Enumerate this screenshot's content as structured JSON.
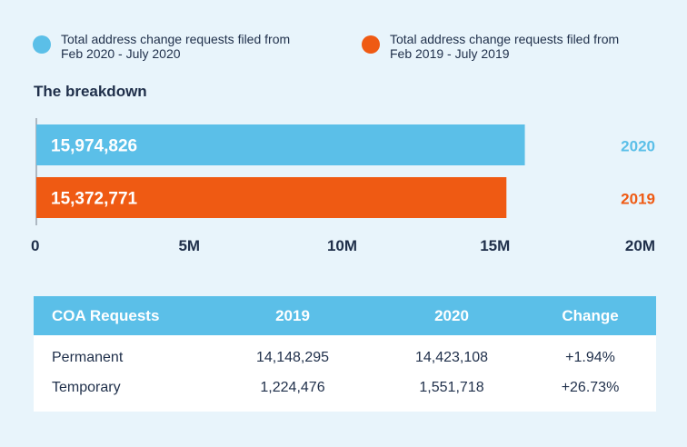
{
  "legend": [
    {
      "text": "Total address change requests filed from Feb 2020 - July 2020",
      "color": "#5bbfe8"
    },
    {
      "text": "Total address change requests filed from Feb 2019 - July 2019",
      "color": "#ef5a13"
    }
  ],
  "section_title": "The breakdown",
  "chart_data": {
    "type": "bar",
    "orientation": "horizontal",
    "categories": [
      "2020",
      "2019"
    ],
    "values": [
      15974826,
      15372771
    ],
    "value_labels": [
      "15,974,826",
      "15,372,771"
    ],
    "colors": [
      "#5bbfe8",
      "#ef5a13"
    ],
    "xlim": [
      0,
      20000000
    ],
    "xticks": [
      0,
      5000000,
      10000000,
      15000000,
      20000000
    ],
    "xtick_labels": [
      "0",
      "5M",
      "10M",
      "15M",
      "20M"
    ],
    "grid": false
  },
  "table": {
    "headers": [
      "COA Requests",
      "2019",
      "2020",
      "Change"
    ],
    "rows": [
      [
        "Permanent",
        "14,148,295",
        "14,423,108",
        "+1.94%"
      ],
      [
        "Temporary",
        "1,224,476",
        "1,551,718",
        "+26.73%"
      ]
    ]
  }
}
